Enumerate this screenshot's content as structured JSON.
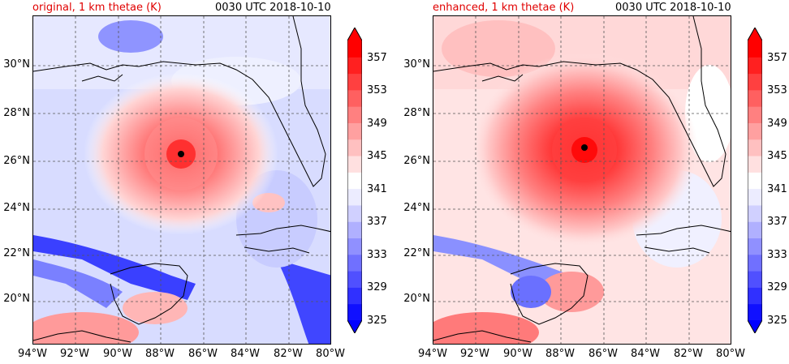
{
  "panels": [
    {
      "label": "original, 1 km thetae (K)",
      "time": "0030 UTC 2018-10-10",
      "storm_center": {
        "lon": -87.1,
        "lat": 26.3
      }
    },
    {
      "label": "enhanced, 1 km thetae (K)",
      "time": "0030 UTC 2018-10-10",
      "storm_center": {
        "lon": -86.9,
        "lat": 26.6
      }
    }
  ],
  "lat_ticks": [
    "20°N",
    "22°N",
    "24°N",
    "26°N",
    "28°N",
    "30°N"
  ],
  "lon_ticks": [
    "94°W",
    "92°W",
    "90°W",
    "88°W",
    "86°W",
    "84°W",
    "82°W",
    "80°W"
  ],
  "colorbar": {
    "ticks": [
      "325",
      "329",
      "333",
      "337",
      "341",
      "345",
      "349",
      "353",
      "357"
    ],
    "colors": [
      "#1010ff",
      "#3030ff",
      "#5050ff",
      "#7070ff",
      "#9090ff",
      "#b0b0ff",
      "#d0d0ff",
      "#ececff",
      "#ffffff",
      "#ffe0e0",
      "#ffc0c0",
      "#ffa0a0",
      "#ff8080",
      "#ff6060",
      "#ff4040",
      "#ff2020",
      "#ff0000"
    ],
    "under_color": "#0000ff",
    "over_color": "#ff0000"
  }
}
